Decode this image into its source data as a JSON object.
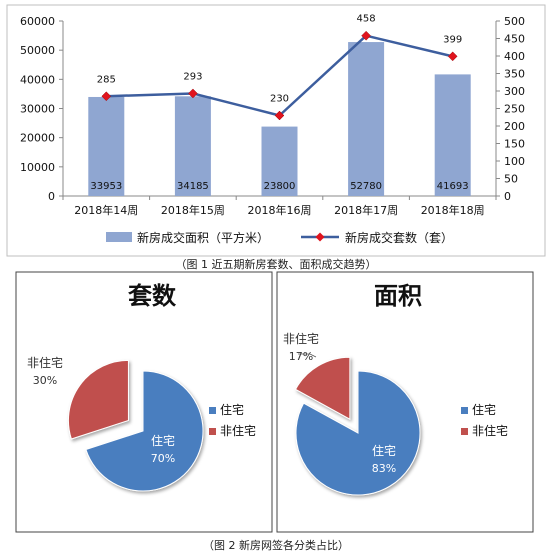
{
  "chart_data": [
    {
      "type": "bar",
      "categories": [
        "2018年14周",
        "2018年15周",
        "2018年16周",
        "2018年17周",
        "2018年18周"
      ],
      "series": [
        {
          "name": "新房成交面积（平方米）",
          "type": "bar",
          "axis": "left",
          "color": "#8fa6d1",
          "values": [
            33953,
            34185,
            23800,
            52780,
            41693
          ]
        },
        {
          "name": "新房成交套数（套）",
          "type": "line",
          "axis": "right",
          "color": "#3d5e9e",
          "marker_color": "#e0141e",
          "values": [
            285,
            293,
            230,
            458,
            399
          ]
        }
      ],
      "ylim_left": [
        0,
        60000
      ],
      "yticks_left": [
        "0",
        "10000",
        "20000",
        "30000",
        "40000",
        "50000",
        "60000"
      ],
      "ylim_right": [
        0,
        500
      ],
      "yticks_right": [
        "0",
        "50",
        "100",
        "150",
        "200",
        "250",
        "300",
        "350",
        "400",
        "450",
        "500"
      ],
      "legend": "bottom",
      "caption": "（图 1 近五期新房套数、面积成交趋势）",
      "grid": false
    },
    {
      "type": "pie",
      "title": "套数",
      "labels": [
        "住宅",
        "非住宅"
      ],
      "values": [
        70,
        30
      ],
      "value_labels": [
        "70%",
        "30%"
      ],
      "colors": [
        "#4a7ebf",
        "#c0504d"
      ],
      "exploded": "非住宅",
      "legend": "right"
    },
    {
      "type": "pie",
      "title": "面积",
      "labels": [
        "住宅",
        "非住宅"
      ],
      "values": [
        83,
        17
      ],
      "value_labels": [
        "83%",
        "17%"
      ],
      "colors": [
        "#4a7ebf",
        "#c0504d"
      ],
      "exploded": "非住宅",
      "legend": "right"
    }
  ],
  "caption2": "（图 2 新房网签各分类占比）"
}
